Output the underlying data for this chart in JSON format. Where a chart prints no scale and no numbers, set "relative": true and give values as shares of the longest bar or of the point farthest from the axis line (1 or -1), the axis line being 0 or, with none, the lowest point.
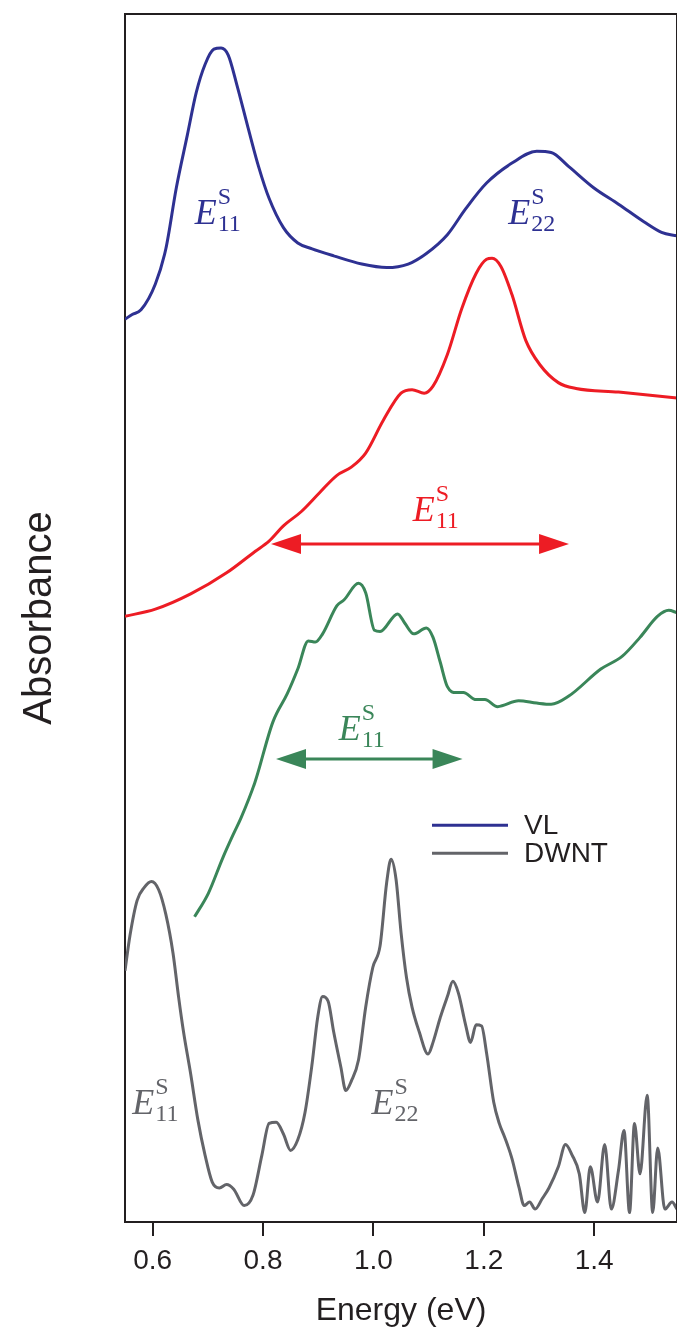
{
  "chart_data": {
    "type": "line",
    "relative": true,
    "xlabel": "Energy (eV)",
    "ylabel": "Absorbance",
    "xlim": [
      0.55,
      1.55
    ],
    "xticks": [
      0.6,
      0.8,
      {
        "value": 1.0,
        "label": "1.0"
      },
      1.2,
      1.4
    ],
    "legend": "right",
    "series": [
      {
        "name": "VL",
        "color": "#2e3192",
        "x": [
          0.55,
          0.563,
          0.579,
          0.605,
          0.624,
          0.643,
          0.663,
          0.679,
          0.695,
          0.711,
          0.724,
          0.737,
          0.753,
          0.773,
          0.792,
          0.811,
          0.837,
          0.863,
          0.889,
          0.928,
          0.979,
          1.024,
          1.063,
          1.096,
          1.134,
          1.167,
          1.205,
          1.251,
          1.296,
          1.322,
          1.354,
          1.399,
          1.444,
          1.49,
          1.522,
          1.55
        ],
        "values": [
          0.769,
          0.773,
          0.777,
          0.799,
          0.829,
          0.881,
          0.926,
          0.962,
          0.986,
          0.999,
          1.0,
          0.994,
          0.968,
          0.932,
          0.899,
          0.872,
          0.847,
          0.834,
          0.829,
          0.823,
          0.816,
          0.813,
          0.816,
          0.825,
          0.841,
          0.863,
          0.885,
          0.902,
          0.912,
          0.911,
          0.899,
          0.881,
          0.867,
          0.852,
          0.843,
          0.84
        ]
      },
      {
        "color": "#ed1c24",
        "x": [
          0.55,
          0.605,
          0.669,
          0.734,
          0.785,
          0.811,
          0.837,
          0.869,
          0.902,
          0.934,
          0.96,
          0.986,
          1.018,
          1.05,
          1.07,
          1.092,
          1.108,
          1.134,
          1.16,
          1.186,
          1.205,
          1.215,
          1.231,
          1.251,
          1.276,
          1.302,
          1.335,
          1.367,
          1.444,
          1.55
        ],
        "values": [
          0.516,
          0.522,
          0.535,
          0.553,
          0.571,
          0.58,
          0.593,
          0.605,
          0.621,
          0.636,
          0.643,
          0.655,
          0.683,
          0.706,
          0.709,
          0.706,
          0.712,
          0.739,
          0.778,
          0.808,
          0.82,
          0.821,
          0.814,
          0.79,
          0.751,
          0.73,
          0.715,
          0.71,
          0.707,
          0.702
        ]
      },
      {
        "color": "#3a8659",
        "x": [
          0.676,
          0.701,
          0.727,
          0.747,
          0.76,
          0.785,
          0.818,
          0.844,
          0.863,
          0.882,
          0.895,
          0.908,
          0.934,
          0.947,
          0.973,
          0.986,
          1.002,
          1.012,
          1.044,
          1.057,
          1.073,
          1.096,
          1.108,
          1.121,
          1.134,
          1.15,
          1.163,
          1.186,
          1.202,
          1.225,
          1.263,
          1.296,
          1.322,
          1.354,
          1.412,
          1.451,
          1.483,
          1.515,
          1.535,
          1.55
        ],
        "values": [
          0.26,
          0.28,
          0.31,
          0.331,
          0.344,
          0.374,
          0.426,
          0.45,
          0.471,
          0.495,
          0.494,
          0.501,
          0.525,
          0.53,
          0.544,
          0.536,
          0.504,
          0.503,
          0.518,
          0.51,
          0.501,
          0.506,
          0.498,
          0.477,
          0.456,
          0.451,
          0.451,
          0.445,
          0.445,
          0.439,
          0.444,
          0.442,
          0.441,
          0.448,
          0.471,
          0.482,
          0.498,
          0.516,
          0.521,
          0.519
        ]
      },
      {
        "name": "DWNT",
        "color": "#636469",
        "x": [
          0.55,
          0.559,
          0.572,
          0.585,
          0.598,
          0.611,
          0.624,
          0.637,
          0.647,
          0.656,
          0.669,
          0.682,
          0.695,
          0.708,
          0.721,
          0.734,
          0.747,
          0.766,
          0.782,
          0.798,
          0.811,
          0.824,
          0.837,
          0.85,
          0.863,
          0.876,
          0.889,
          0.899,
          0.908,
          0.918,
          0.928,
          0.941,
          0.95,
          0.96,
          0.973,
          0.986,
          0.999,
          1.012,
          1.024,
          1.032,
          1.041,
          1.05,
          1.06,
          1.07,
          1.083,
          1.099,
          1.108,
          1.121,
          1.134,
          1.144,
          1.154,
          1.167,
          1.176,
          1.186,
          1.196,
          1.205,
          1.218,
          1.228,
          1.238,
          1.251,
          1.264,
          1.273,
          1.283,
          1.293,
          1.306,
          1.318,
          1.335,
          1.348,
          1.36,
          1.373,
          1.383,
          1.393,
          1.406,
          1.419,
          1.431,
          1.444,
          1.454,
          1.464,
          1.473,
          1.483,
          1.496,
          1.506,
          1.515,
          1.528,
          1.541,
          1.55
        ],
        "values": [
          0.214,
          0.244,
          0.274,
          0.285,
          0.29,
          0.283,
          0.262,
          0.229,
          0.192,
          0.162,
          0.126,
          0.087,
          0.057,
          0.034,
          0.029,
          0.032,
          0.028,
          0.014,
          0.023,
          0.057,
          0.084,
          0.085,
          0.075,
          0.061,
          0.07,
          0.093,
          0.135,
          0.174,
          0.192,
          0.188,
          0.162,
          0.132,
          0.112,
          0.12,
          0.138,
          0.183,
          0.217,
          0.235,
          0.289,
          0.309,
          0.292,
          0.247,
          0.208,
          0.183,
          0.162,
          0.143,
          0.153,
          0.174,
          0.192,
          0.205,
          0.195,
          0.168,
          0.153,
          0.168,
          0.167,
          0.144,
          0.102,
          0.084,
          0.072,
          0.054,
          0.029,
          0.014,
          0.017,
          0.011,
          0.02,
          0.029,
          0.047,
          0.066,
          0.057,
          0.041,
          0.008,
          0.047,
          0.017,
          0.066,
          0.011,
          0.044,
          0.078,
          0.008,
          0.084,
          0.041,
          0.108,
          0.008,
          0.063,
          0.011,
          0.017,
          0.011
        ]
      }
    ],
    "annotations": [
      "E$_{11}$$^{S}$",
      "E$_{22}$$^{S}$",
      "E$_{11}$$^{S}$",
      "E$_{22}$$^{S}$",
      "E$_{11}$$^{S}$",
      "E$_{11}$$^{S}$"
    ]
  }
}
